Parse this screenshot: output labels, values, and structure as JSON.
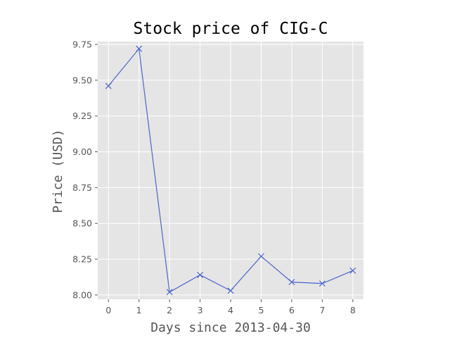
{
  "chart_data": {
    "type": "line",
    "title": "Stock price of CIG-C",
    "xlabel": "Days since 2013-04-30",
    "ylabel": "Price (USD)",
    "x": [
      0,
      1,
      2,
      3,
      4,
      5,
      6,
      7,
      8
    ],
    "xticks": [
      "0",
      "1",
      "2",
      "3",
      "4",
      "5",
      "6",
      "7",
      "8"
    ],
    "yticks": [
      "8.00",
      "8.25",
      "8.50",
      "8.75",
      "9.00",
      "9.25",
      "9.50",
      "9.75"
    ],
    "xlim": [
      -0.35,
      8.35
    ],
    "ylim": [
      7.97,
      9.77
    ],
    "grid": true,
    "series": [
      {
        "values": [
          9.46,
          9.72,
          8.02,
          8.14,
          8.03,
          8.27,
          8.09,
          8.08,
          8.17
        ],
        "color": "#4a66cc",
        "marker": "x"
      }
    ],
    "colors": {
      "plot_background": "#e5e5e5",
      "grid": "#ffffff",
      "line": "#4a66cc"
    }
  }
}
